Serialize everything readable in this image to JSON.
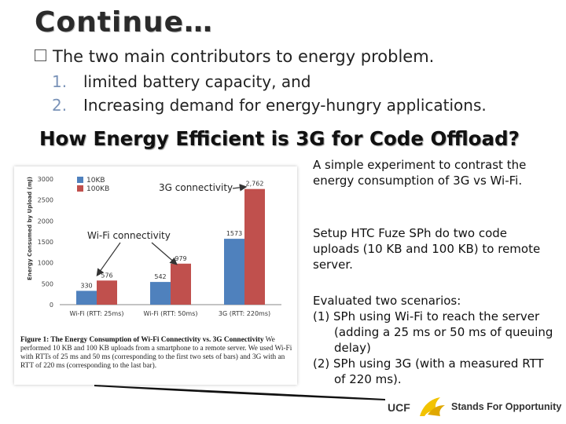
{
  "slide": {
    "title": "Continue…",
    "bullet": "The two main contributors to energy problem.",
    "numbered": [
      {
        "num": "1.",
        "text": "limited battery capacity, and"
      },
      {
        "num": "2.",
        "text": "Increasing demand for energy-hungry applications."
      }
    ],
    "heading": "How Energy Efficient is 3G for Code Offload?"
  },
  "right_panel": {
    "para1": "A simple experiment to contrast the energy consumption of 3G vs Wi-Fi.",
    "para2": "Setup  HTC Fuze SPh do two code uploads (10 KB and 100 KB) to remote server.",
    "para3_intro": "Evaluated two scenarios:",
    "scenario1": "(1) SPh using Wi-Fi to reach  the server (adding a 25 ms or 50 ms of queuing delay)",
    "scenario2": "(2) SPh using 3G (with a measured RTT of 220 ms)."
  },
  "figure": {
    "caption_bold": "Figure 1: The Energy Consumption of Wi-Fi Connectivity vs. 3G Connectivity",
    "caption_rest": " We performed 10 KB and 100 KB uploads from a smartphone to a remote server. We used Wi-Fi with RTTs of 25 ms and 50 ms (corresponding to the first two sets of bars) and 3G with an RTT of 220 ms (corresponding to the last bar).",
    "annotation_3g": "3G connectivity",
    "annotation_wifi": "Wi-Fi connectivity"
  },
  "footer": {
    "logo_text": "UCF",
    "tagline": "Stands For Opportunity"
  },
  "chart_data": {
    "type": "bar",
    "categories": [
      "Wi-Fi (RTT: 25ms)",
      "Wi-Fi (RTT: 50ms)",
      "3G (RTT: 220ms)"
    ],
    "series": [
      {
        "name": "10KB",
        "values": [
          330,
          542,
          1573
        ],
        "labels": [
          "330",
          "542",
          "1573"
        ],
        "color": "#4f81bd"
      },
      {
        "name": "100KB",
        "values": [
          576,
          979,
          2762
        ],
        "labels": [
          "576",
          "979",
          "2,762"
        ],
        "color": "#c0504d"
      }
    ],
    "ylabel": "Energy Consumed by Upload (mJ)",
    "yticks": [
      "0",
      "500",
      "1000",
      "1500",
      "2000",
      "2500",
      "3000"
    ],
    "ylim": [
      0,
      3000
    ],
    "legend_position": "top-left",
    "grid": false
  }
}
